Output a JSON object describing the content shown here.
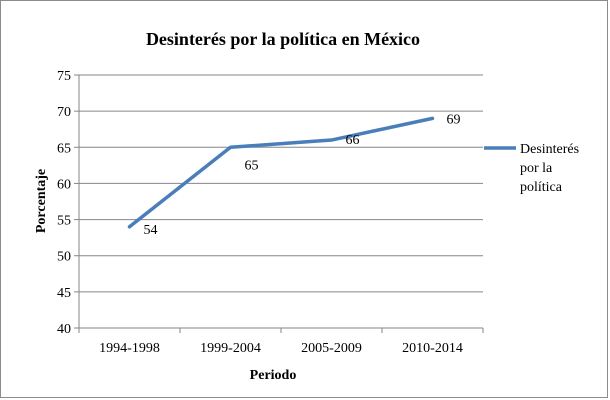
{
  "chart_data": {
    "type": "line",
    "title": "Desinterés por la política en México",
    "xlabel": "Periodo",
    "ylabel": "Porcentaje",
    "categories": [
      "1994-1998",
      "1999-2004",
      "2005-2009",
      "2010-2014"
    ],
    "series": [
      {
        "name": "Desinterés por la política",
        "name_lines": [
          "Desinterés",
          "por la",
          "política"
        ],
        "values": [
          54,
          65,
          66,
          69
        ],
        "color": "#4a7ebb"
      }
    ],
    "ylim": [
      40,
      75
    ],
    "yticks": [
      40,
      45,
      50,
      55,
      60,
      65,
      70,
      75
    ],
    "grid": true,
    "legend": "right"
  }
}
